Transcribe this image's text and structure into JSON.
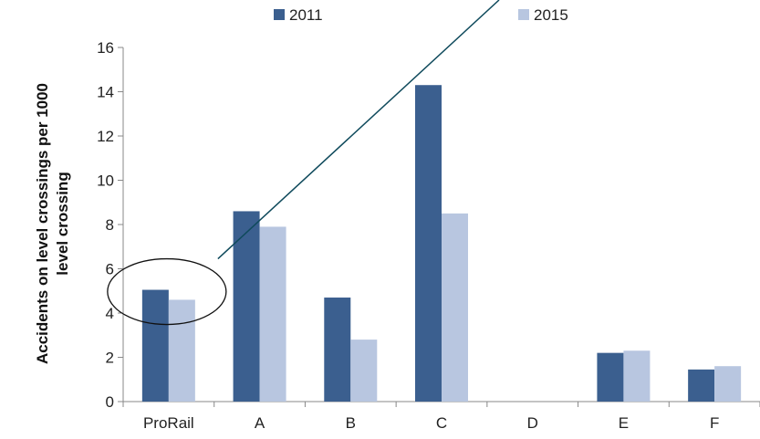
{
  "chart_data": {
    "type": "bar",
    "categories": [
      "ProRail",
      "A",
      "B",
      "C",
      "D",
      "E",
      "F"
    ],
    "series": [
      {
        "name": "2011",
        "values": [
          5.05,
          8.6,
          4.7,
          14.3,
          0,
          2.2,
          1.45
        ],
        "color": "#3b5f8f"
      },
      {
        "name": "2015",
        "values": [
          4.6,
          7.9,
          2.8,
          8.5,
          0,
          2.3,
          1.6
        ],
        "color": "#b8c6e0"
      }
    ],
    "ylabel": "Accidents on level crossings per 1000 level crossing",
    "ylabel_lines": [
      "Accidents on level crossings per 1000",
      "level crossing"
    ],
    "xlabel": "",
    "ylim": [
      0,
      16
    ],
    "yticks": [
      "0",
      "2",
      "4",
      "6",
      "8",
      "10",
      "12",
      "14",
      "16"
    ],
    "grid": false,
    "legend_position": "top-center",
    "annotation": "ellipse around the ProRail bars with a diagonal line rising to the top right"
  }
}
